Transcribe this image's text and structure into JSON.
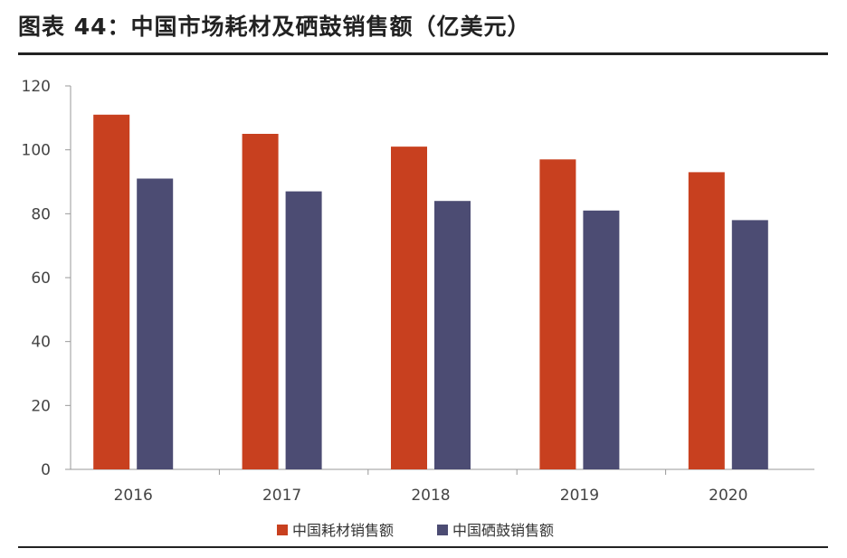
{
  "title": "图表 44：中国市场耗材及硒鼓销售额（亿美元）",
  "chart_data": {
    "type": "bar",
    "title": "图表 44：中国市场耗材及硒鼓销售额（亿美元）",
    "categories": [
      "2016",
      "2017",
      "2018",
      "2019",
      "2020"
    ],
    "series": [
      {
        "name": "中国耗材销售额",
        "color": "#C8401F",
        "values": [
          111,
          105,
          101,
          97,
          93
        ]
      },
      {
        "name": "中国硒鼓销售额",
        "color": "#4C4C73",
        "values": [
          91,
          87,
          84,
          81,
          78
        ]
      }
    ],
    "ylim": [
      0,
      120
    ],
    "yticks": [
      0,
      20,
      40,
      60,
      80,
      100,
      120
    ],
    "xlabel": "",
    "ylabel": "",
    "grid": false,
    "legend_position": "bottom"
  }
}
